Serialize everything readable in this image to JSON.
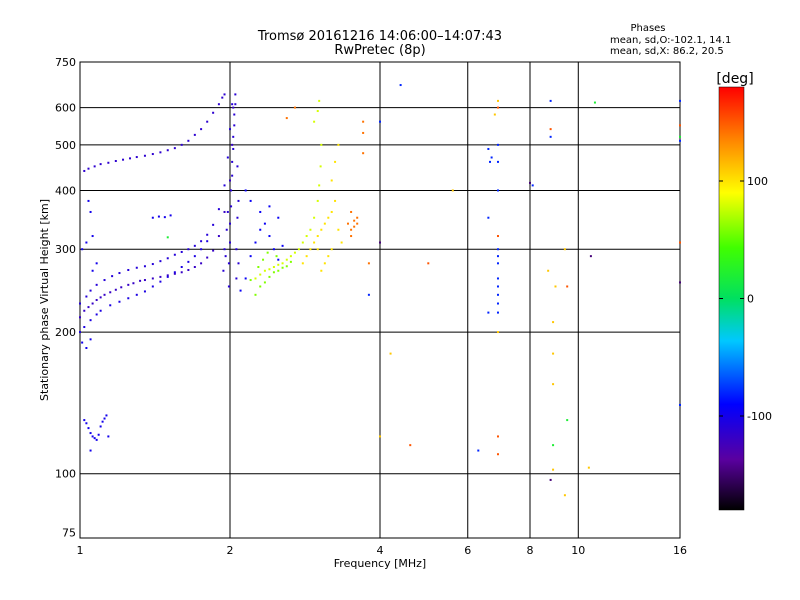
{
  "chart_data": {
    "type": "scatter",
    "title": "Tromsø 20161216 14:06:00–14:07:43",
    "subtitle": "RwPretec (8p)",
    "info": {
      "heading": "Phases",
      "line1": "mean, sd,O:-102.1, 14.1",
      "line2": "mean, sd,X:  86.2, 20.5"
    },
    "xlabel": "Frequency [MHz]",
    "ylabel": "Stationary phase Virtual Height [km]",
    "x_scale": "log",
    "y_scale": "log",
    "xlim": [
      1,
      16
    ],
    "ylim": [
      73,
      750
    ],
    "xticks": [
      1,
      2,
      4,
      6,
      8,
      10,
      16
    ],
    "yticks": [
      75,
      100,
      200,
      300,
      400,
      500,
      600,
      750
    ],
    "grid": true,
    "colorbar": {
      "label": "[deg]",
      "range": [
        -180,
        180
      ],
      "ticks": [
        100,
        0,
        -100
      ]
    },
    "series": [
      {
        "phase_group": "O",
        "phase": -120,
        "points": [
          [
            1.0,
            215
          ],
          [
            1.02,
            222
          ],
          [
            1.04,
            226
          ],
          [
            1.06,
            230
          ],
          [
            1.08,
            234
          ],
          [
            1.1,
            237
          ],
          [
            1.12,
            240
          ],
          [
            1.15,
            243
          ],
          [
            1.18,
            246
          ],
          [
            1.21,
            249
          ],
          [
            1.25,
            252
          ],
          [
            1.28,
            254
          ],
          [
            1.32,
            257
          ],
          [
            1.35,
            258
          ],
          [
            1.4,
            260
          ],
          [
            1.45,
            262
          ],
          [
            1.5,
            264
          ],
          [
            1.55,
            266
          ],
          [
            1.6,
            268
          ],
          [
            1.65,
            271
          ],
          [
            1.7,
            275
          ],
          [
            1.75,
            280
          ],
          [
            1.8,
            288
          ],
          [
            1.85,
            298
          ],
          [
            1.9,
            320
          ],
          [
            1.95,
            360
          ],
          [
            2.0,
            420
          ],
          [
            2.02,
            500
          ],
          [
            2.03,
            600
          ]
        ]
      },
      {
        "phase_group": "O",
        "phase": -110,
        "points": [
          [
            1.0,
            230
          ],
          [
            1.03,
            238
          ],
          [
            1.05,
            245
          ],
          [
            1.08,
            252
          ],
          [
            1.12,
            258
          ],
          [
            1.16,
            263
          ],
          [
            1.2,
            267
          ],
          [
            1.25,
            271
          ],
          [
            1.3,
            274
          ],
          [
            1.35,
            276
          ],
          [
            1.4,
            279
          ],
          [
            1.45,
            283
          ],
          [
            1.5,
            287
          ],
          [
            1.55,
            292
          ],
          [
            1.6,
            296
          ],
          [
            1.65,
            300
          ],
          [
            1.7,
            305
          ],
          [
            1.75,
            312
          ],
          [
            1.8,
            322
          ],
          [
            1.85,
            338
          ],
          [
            1.9,
            365
          ],
          [
            1.95,
            410
          ],
          [
            1.98,
            470
          ],
          [
            2.0,
            540
          ],
          [
            2.02,
            610
          ]
        ]
      },
      {
        "phase_group": "O",
        "phase": -105,
        "points": [
          [
            1.0,
            200
          ],
          [
            1.02,
            205
          ],
          [
            1.05,
            212
          ],
          [
            1.08,
            218
          ],
          [
            1.1,
            222
          ],
          [
            1.15,
            228
          ],
          [
            1.2,
            232
          ],
          [
            1.25,
            236
          ],
          [
            1.3,
            240
          ],
          [
            1.35,
            244
          ],
          [
            1.4,
            250
          ],
          [
            1.45,
            256
          ],
          [
            1.5,
            262
          ],
          [
            1.55,
            268
          ],
          [
            1.6,
            275
          ],
          [
            1.65,
            282
          ],
          [
            1.7,
            290
          ],
          [
            1.75,
            300
          ],
          [
            1.8,
            312
          ]
        ]
      },
      {
        "phase_group": "O",
        "phase": -115,
        "points": [
          [
            1.02,
            440
          ],
          [
            1.04,
            445
          ],
          [
            1.07,
            450
          ],
          [
            1.1,
            455
          ],
          [
            1.14,
            458
          ],
          [
            1.18,
            462
          ],
          [
            1.22,
            465
          ],
          [
            1.26,
            468
          ],
          [
            1.3,
            471
          ],
          [
            1.35,
            474
          ],
          [
            1.4,
            478
          ],
          [
            1.45,
            482
          ],
          [
            1.5,
            487
          ],
          [
            1.55,
            492
          ],
          [
            1.6,
            500
          ],
          [
            1.65,
            510
          ],
          [
            1.7,
            525
          ],
          [
            1.75,
            540
          ],
          [
            1.8,
            560
          ],
          [
            1.85,
            585
          ],
          [
            1.9,
            610
          ],
          [
            1.93,
            630
          ],
          [
            1.95,
            640
          ]
        ]
      },
      {
        "phase_group": "O",
        "phase": -112,
        "points": [
          [
            1.99,
            250
          ],
          [
            1.99,
            280
          ],
          [
            2.0,
            310
          ],
          [
            2.0,
            340
          ],
          [
            2.01,
            370
          ],
          [
            2.01,
            400
          ],
          [
            2.02,
            430
          ],
          [
            2.02,
            460
          ],
          [
            2.03,
            490
          ],
          [
            2.03,
            520
          ],
          [
            2.04,
            550
          ],
          [
            2.04,
            580
          ],
          [
            2.05,
            610
          ],
          [
            2.05,
            640
          ],
          [
            2.06,
            300
          ],
          [
            2.06,
            260
          ],
          [
            2.07,
            350
          ],
          [
            2.07,
            450
          ],
          [
            2.08,
            380
          ],
          [
            2.08,
            280
          ],
          [
            1.97,
            330
          ],
          [
            1.96,
            290
          ],
          [
            1.98,
            360
          ],
          [
            1.95,
            300
          ],
          [
            1.94,
            270
          ]
        ]
      },
      {
        "phase_group": "O",
        "phase": -100,
        "points": [
          [
            1.02,
            130
          ],
          [
            1.03,
            128
          ],
          [
            1.04,
            125
          ],
          [
            1.05,
            122
          ],
          [
            1.06,
            120
          ],
          [
            1.07,
            119
          ],
          [
            1.08,
            118
          ],
          [
            1.09,
            121
          ],
          [
            1.1,
            126
          ],
          [
            1.11,
            129
          ],
          [
            1.12,
            131
          ],
          [
            1.13,
            133
          ],
          [
            1.05,
            112
          ],
          [
            1.14,
            120
          ],
          [
            1.01,
            190
          ],
          [
            1.03,
            185
          ],
          [
            1.05,
            193
          ],
          [
            1.4,
            350
          ],
          [
            1.44,
            352
          ],
          [
            1.48,
            351
          ],
          [
            1.52,
            354
          ],
          [
            1.06,
            270
          ],
          [
            1.08,
            280
          ],
          [
            1.06,
            320
          ],
          [
            1.05,
            360
          ],
          [
            1.04,
            380
          ],
          [
            1.01,
            300
          ],
          [
            1.03,
            310
          ]
        ]
      },
      {
        "phase_group": "O",
        "phase": -95,
        "points": [
          [
            2.1,
            245
          ],
          [
            2.15,
            260
          ],
          [
            2.2,
            290
          ],
          [
            2.25,
            310
          ],
          [
            2.3,
            330
          ],
          [
            2.35,
            340
          ],
          [
            2.4,
            320
          ],
          [
            2.45,
            300
          ],
          [
            2.5,
            285
          ],
          [
            2.55,
            305
          ],
          [
            2.4,
            370
          ],
          [
            2.5,
            350
          ],
          [
            2.3,
            360
          ],
          [
            2.2,
            380
          ],
          [
            2.15,
            400
          ]
        ]
      },
      {
        "phase_group": "X",
        "phase": 80,
        "points": [
          [
            2.25,
            260
          ],
          [
            2.3,
            265
          ],
          [
            2.35,
            270
          ],
          [
            2.4,
            272
          ],
          [
            2.45,
            275
          ],
          [
            2.5,
            278
          ],
          [
            2.55,
            280
          ],
          [
            2.6,
            285
          ],
          [
            2.65,
            290
          ],
          [
            2.7,
            295
          ],
          [
            2.75,
            300
          ],
          [
            2.8,
            310
          ],
          [
            2.85,
            320
          ],
          [
            2.9,
            330
          ],
          [
            2.95,
            350
          ],
          [
            3.0,
            380
          ],
          [
            3.02,
            410
          ],
          [
            3.04,
            450
          ],
          [
            3.05,
            500
          ],
          [
            2.95,
            560
          ],
          [
            3.0,
            590
          ],
          [
            3.02,
            620
          ]
        ]
      },
      {
        "phase_group": "X",
        "phase": 100,
        "points": [
          [
            2.8,
            280
          ],
          [
            2.85,
            290
          ],
          [
            2.9,
            300
          ],
          [
            2.95,
            310
          ],
          [
            3.0,
            320
          ],
          [
            3.05,
            330
          ],
          [
            3.1,
            340
          ],
          [
            3.15,
            350
          ],
          [
            3.2,
            360
          ],
          [
            3.25,
            380
          ],
          [
            3.2,
            420
          ],
          [
            3.25,
            460
          ],
          [
            3.3,
            500
          ],
          [
            3.2,
            300
          ],
          [
            3.15,
            290
          ],
          [
            3.1,
            280
          ],
          [
            3.05,
            270
          ],
          [
            3.0,
            300
          ],
          [
            3.3,
            330
          ],
          [
            3.35,
            310
          ]
        ]
      },
      {
        "phase_group": "X",
        "phase": 60,
        "points": [
          [
            2.25,
            240
          ],
          [
            2.3,
            250
          ],
          [
            2.35,
            255
          ],
          [
            2.4,
            262
          ],
          [
            2.45,
            268
          ],
          [
            2.5,
            270
          ],
          [
            2.55,
            274
          ],
          [
            2.6,
            276
          ],
          [
            2.65,
            282
          ],
          [
            2.2,
            258
          ],
          [
            2.28,
            275
          ],
          [
            2.33,
            285
          ],
          [
            2.38,
            295
          ],
          [
            2.48,
            290
          ]
        ]
      },
      {
        "phase_group": "X",
        "phase": 140,
        "points": [
          [
            3.5,
            330
          ],
          [
            3.55,
            345
          ],
          [
            3.6,
            350
          ],
          [
            3.5,
            360
          ],
          [
            3.45,
            340
          ],
          [
            3.55,
            335
          ],
          [
            3.6,
            340
          ],
          [
            3.5,
            320
          ],
          [
            2.6,
            570
          ],
          [
            2.7,
            600
          ],
          [
            3.7,
            480
          ],
          [
            3.7,
            530
          ],
          [
            3.7,
            560
          ],
          [
            3.8,
            280
          ]
        ]
      },
      {
        "phase_group": "sparse",
        "phase": -80,
        "points": [
          [
            4.0,
            560
          ],
          [
            4.4,
            670
          ],
          [
            6.6,
            490
          ],
          [
            6.65,
            460
          ],
          [
            6.7,
            470
          ],
          [
            6.9,
            500
          ],
          [
            6.9,
            460
          ],
          [
            6.9,
            400
          ],
          [
            6.9,
            300
          ],
          [
            6.9,
            290
          ],
          [
            6.9,
            280
          ],
          [
            6.9,
            260
          ],
          [
            6.9,
            250
          ],
          [
            6.9,
            240
          ],
          [
            6.9,
            230
          ],
          [
            6.9,
            220
          ],
          [
            6.6,
            350
          ],
          [
            6.6,
            220
          ],
          [
            6.3,
            112
          ],
          [
            8.1,
            410
          ],
          [
            8.8,
            620
          ],
          [
            8.8,
            520
          ],
          [
            16.0,
            620
          ],
          [
            3.8,
            240
          ],
          [
            16.0,
            510
          ],
          [
            16.0,
            140
          ]
        ]
      },
      {
        "phase_group": "sparse",
        "phase": 150,
        "points": [
          [
            6.9,
            320
          ],
          [
            6.9,
            120
          ],
          [
            6.9,
            110
          ],
          [
            5.0,
            280
          ],
          [
            4.6,
            115
          ],
          [
            16.0,
            310
          ],
          [
            16.0,
            550
          ],
          [
            6.9,
            600
          ],
          [
            9.5,
            250
          ],
          [
            8.8,
            540
          ]
        ]
      },
      {
        "phase_group": "sparse",
        "phase": 110,
        "points": [
          [
            6.9,
            620
          ],
          [
            6.8,
            580
          ],
          [
            6.9,
            200
          ],
          [
            8.9,
            210
          ],
          [
            8.9,
            180
          ],
          [
            8.9,
            155
          ],
          [
            9.4,
            300
          ],
          [
            9.4,
            90
          ],
          [
            8.9,
            102
          ],
          [
            10.5,
            103
          ],
          [
            4.0,
            120
          ],
          [
            4.2,
            180
          ],
          [
            5.6,
            400
          ],
          [
            8.7,
            270
          ],
          [
            9.0,
            250
          ]
        ]
      },
      {
        "phase_group": "sparse",
        "phase": 20,
        "points": [
          [
            10.8,
            615
          ],
          [
            9.5,
            130
          ],
          [
            8.9,
            115
          ],
          [
            1.5,
            318
          ],
          [
            16.0,
            520
          ]
        ]
      },
      {
        "phase_group": "sparse",
        "phase": -150,
        "points": [
          [
            8.8,
            97
          ],
          [
            10.6,
            290
          ],
          [
            16.0,
            255
          ],
          [
            8.0,
            415
          ],
          [
            4.0,
            310
          ]
        ]
      }
    ]
  }
}
